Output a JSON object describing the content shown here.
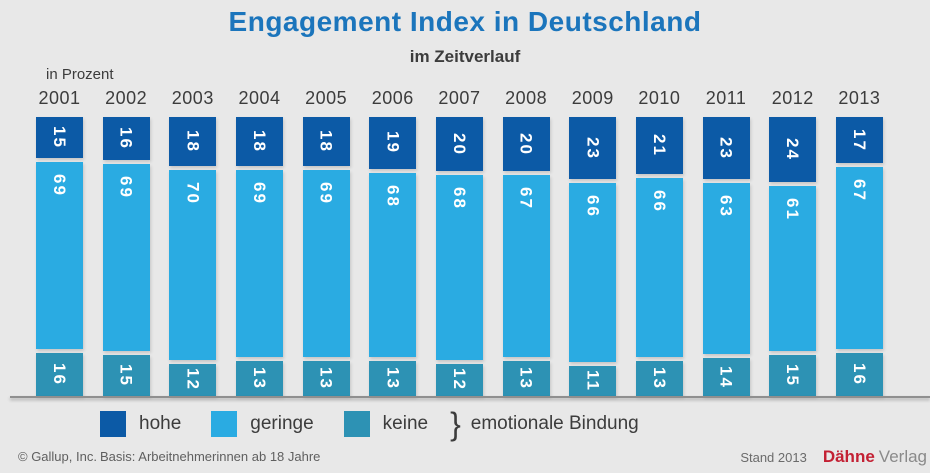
{
  "header": {
    "title": "Engagement Index in Deutschland",
    "subtitle": "im Zeitverlauf",
    "unit_label": "in Prozent"
  },
  "chart_data": {
    "type": "bar",
    "stacked": true,
    "title": "Engagement Index in Deutschland",
    "subtitle": "im Zeitverlauf",
    "unit": "Prozent",
    "ylim": [
      0,
      100
    ],
    "grid": false,
    "legend_position": "bottom",
    "categories": [
      "2001",
      "2002",
      "2003",
      "2004",
      "2005",
      "2006",
      "2007",
      "2008",
      "2009",
      "2010",
      "2011",
      "2012",
      "2013"
    ],
    "series": [
      {
        "name": "hohe",
        "color": "#0c5aa6",
        "values": [
          15,
          16,
          18,
          18,
          18,
          19,
          20,
          20,
          23,
          21,
          23,
          24,
          17
        ]
      },
      {
        "name": "geringe",
        "color": "#2aabe2",
        "values": [
          69,
          69,
          70,
          69,
          69,
          68,
          68,
          67,
          66,
          66,
          63,
          61,
          67
        ]
      },
      {
        "name": "keine",
        "color": "#2d92b4",
        "values": [
          16,
          15,
          12,
          13,
          13,
          13,
          12,
          13,
          11,
          13,
          14,
          15,
          16
        ]
      }
    ]
  },
  "legend": {
    "brace": "}",
    "suffix": "emotionale Bindung"
  },
  "footer": {
    "copyright": "© Gallup, Inc.",
    "basis": "Basis: Arbeitnehmerinnen ab 18 Jahre",
    "stand": "Stand 2013",
    "publisher_bold": "Dähne",
    "publisher_rest": "Verlag"
  },
  "colors": {
    "background": "#e8e8e8",
    "title": "#1b75bc",
    "bar_hohe": "#0c5aa6",
    "bar_geringe": "#2aabe2",
    "bar_keine": "#2d92b4",
    "axis_line": "#8f8f8f",
    "publisher_red": "#c32033"
  }
}
